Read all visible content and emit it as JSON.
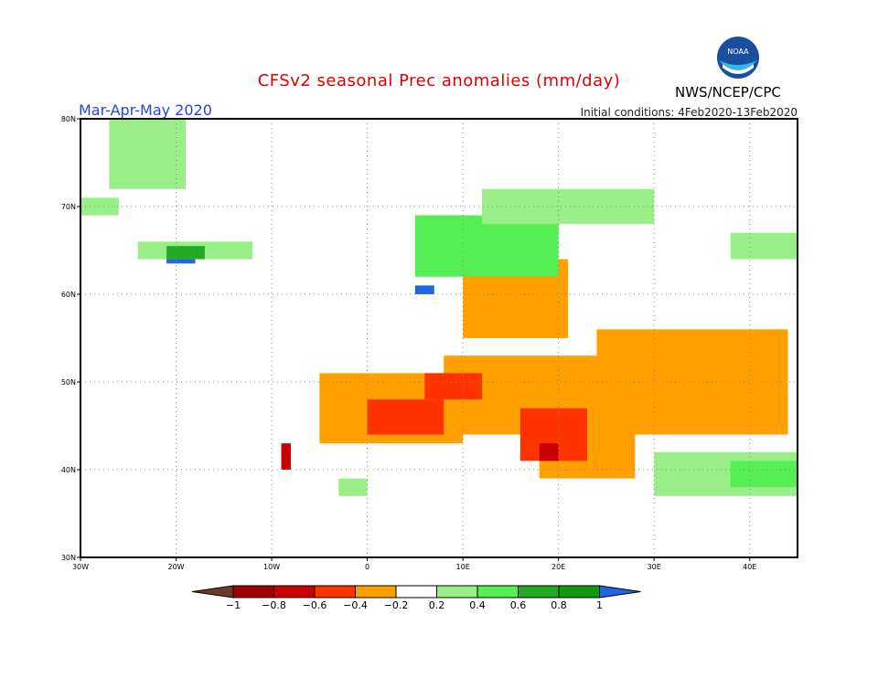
{
  "header": {
    "title": "CFSv2 seasonal Prec anomalies (mm/day)",
    "season": "Mar-Apr-May 2020",
    "initial_conditions": "Initial conditions: 4Feb2020-13Feb2020",
    "agency": "NWS/NCEP/CPC",
    "logo_text": "NOAA"
  },
  "chart_data": {
    "type": "heatmap",
    "title": "CFSv2 seasonal Prec anomalies (mm/day)",
    "units": "mm/day",
    "lon_range": [
      -30,
      45
    ],
    "lat_range": [
      30,
      80
    ],
    "x_ticks": [
      "30W",
      "20W",
      "10W",
      "0",
      "10E",
      "20E",
      "30E",
      "40E"
    ],
    "x_tick_values": [
      -30,
      -20,
      -10,
      0,
      10,
      20,
      30,
      40
    ],
    "y_ticks": [
      "30N",
      "40N",
      "50N",
      "60N",
      "70N",
      "80N"
    ],
    "y_tick_values": [
      30,
      40,
      50,
      60,
      70,
      80
    ],
    "colorbar": {
      "labels": [
        "-1",
        "-0.8",
        "-0.6",
        "-0.4",
        "-0.2",
        "0.2",
        "0.4",
        "0.6",
        "0.8",
        "1"
      ],
      "colors": [
        "#6b3a2a",
        "#a00000",
        "#c80000",
        "#ff3300",
        "#ffa000",
        "#ffffff",
        "#99ee88",
        "#55ee55",
        "#22aa22",
        "#119911",
        "#2266dd"
      ]
    },
    "regions": [
      {
        "lon": [
          -5,
          10
        ],
        "lat": [
          43,
          51
        ],
        "value": -0.3
      },
      {
        "lon": [
          8,
          28
        ],
        "lat": [
          44,
          53
        ],
        "value": -0.3
      },
      {
        "lon": [
          10,
          21
        ],
        "lat": [
          55,
          64
        ],
        "value": -0.3
      },
      {
        "lon": [
          24,
          44
        ],
        "lat": [
          44,
          56
        ],
        "value": -0.3
      },
      {
        "lon": [
          18,
          28
        ],
        "lat": [
          39,
          45
        ],
        "value": -0.3
      },
      {
        "lon": [
          0,
          8
        ],
        "lat": [
          44,
          48
        ],
        "value": -0.5
      },
      {
        "lon": [
          6,
          12
        ],
        "lat": [
          48,
          51
        ],
        "value": -0.5
      },
      {
        "lon": [
          16,
          23
        ],
        "lat": [
          41,
          47
        ],
        "value": -0.5
      },
      {
        "lon": [
          18,
          20
        ],
        "lat": [
          41,
          43
        ],
        "value": -0.7
      },
      {
        "lon": [
          -9,
          -8
        ],
        "lat": [
          40,
          43
        ],
        "value": -0.7
      },
      {
        "lon": [
          5,
          20
        ],
        "lat": [
          62,
          69
        ],
        "value": 0.5
      },
      {
        "lon": [
          12,
          30
        ],
        "lat": [
          68,
          72
        ],
        "value": 0.3
      },
      {
        "lon": [
          -27,
          -19
        ],
        "lat": [
          72,
          80
        ],
        "value": 0.3
      },
      {
        "lon": [
          -30,
          -26
        ],
        "lat": [
          69,
          71
        ],
        "value": 0.3
      },
      {
        "lon": [
          -24,
          -12
        ],
        "lat": [
          64,
          66
        ],
        "value": 0.3
      },
      {
        "lon": [
          -21,
          -17
        ],
        "lat": [
          64,
          65.5
        ],
        "value": 0.7
      },
      {
        "lon": [
          -21,
          -18
        ],
        "lat": [
          63.5,
          64
        ],
        "value": 1.1
      },
      {
        "lon": [
          5,
          7
        ],
        "lat": [
          60,
          61
        ],
        "value": 1.1
      },
      {
        "lon": [
          30,
          45
        ],
        "lat": [
          37,
          42
        ],
        "value": 0.3
      },
      {
        "lon": [
          38,
          45
        ],
        "lat": [
          38,
          41
        ],
        "value": 0.5
      },
      {
        "lon": [
          -3,
          0
        ],
        "lat": [
          37,
          39
        ],
        "value": 0.3
      },
      {
        "lon": [
          38,
          45
        ],
        "lat": [
          64,
          67
        ],
        "value": 0.3
      }
    ]
  }
}
